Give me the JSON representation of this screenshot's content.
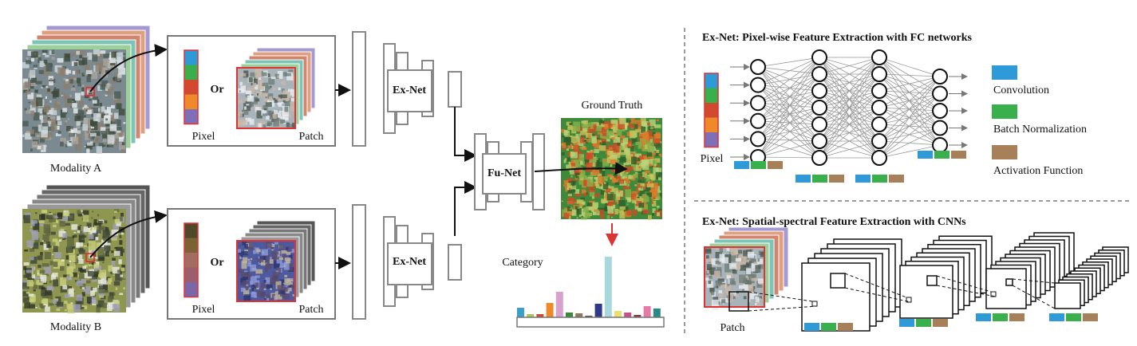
{
  "modalities": [
    {
      "label": "Modality A",
      "input": {
        "pixel_label": "Pixel",
        "or_label": "Or",
        "patch_label": "Patch"
      },
      "network": "Ex-Net"
    },
    {
      "label": "Modality B",
      "input": {
        "pixel_label": "Pixel",
        "or_label": "Or",
        "patch_label": "Patch"
      },
      "network": "Ex-Net"
    }
  ],
  "fusion": {
    "network": "Fu-Net",
    "ground_truth": "Ground Truth",
    "category": "Category"
  },
  "fc_panel": {
    "title": "Ex-Net: Pixel-wise Feature Extraction with FC networks",
    "input_label": "Pixel",
    "legend": [
      "Convolution",
      "Batch Normalization",
      "Activation Function"
    ]
  },
  "cnn_panel": {
    "title": "Ex-Net: Spatial-spectral Feature Extraction with CNNs",
    "input_label": "Patch"
  }
}
